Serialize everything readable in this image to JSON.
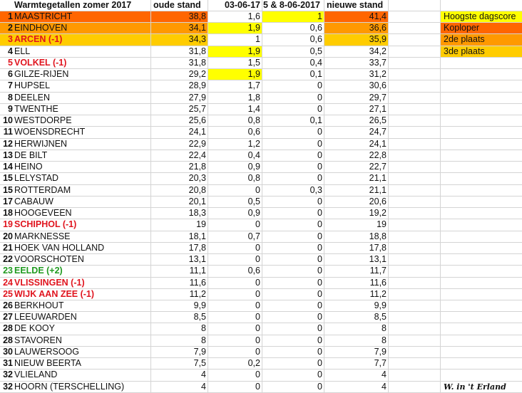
{
  "colors": {
    "first": "#FF6600",
    "second": "#FF9900",
    "third": "#FFCC00",
    "day_high": "#FFFF00",
    "down": "#e0141e",
    "up": "#1f9a1f"
  },
  "header": {
    "title": "Warmtegetallen zomer 2017",
    "col_old": "oude stand",
    "col_day1": "03-06-17",
    "col_day2": "5 & 8-06-2017",
    "col_new": "nieuwe stand"
  },
  "legend": [
    {
      "label": "Hoogste dagscore",
      "color": "#FFFF00"
    },
    {
      "label": "Koploper",
      "color": "#FF6600"
    },
    {
      "label": "2de plaats",
      "color": "#FF9900"
    },
    {
      "label": "3de plaats",
      "color": "#FFCC00"
    }
  ],
  "signature": "W. in 't Erland",
  "rows": [
    {
      "rank": "1",
      "name": "MAASTRICHT",
      "old": "38,8",
      "d1": "1,6",
      "d2": "1",
      "new": "41,4",
      "place": "first",
      "hi_d2": true
    },
    {
      "rank": "2",
      "name": "EINDHOVEN",
      "old": "34,1",
      "d1": "1,9",
      "d2": "0,6",
      "new": "36,6",
      "place": "second",
      "hi_d1": true
    },
    {
      "rank": "3",
      "name": "ARCEN (-1)",
      "old": "34,3",
      "d1": "1",
      "d2": "0,6",
      "new": "35,9",
      "place": "third",
      "move": "down"
    },
    {
      "rank": "4",
      "name": "ELL",
      "old": "31,8",
      "d1": "1,9",
      "d2": "0,5",
      "new": "34,2",
      "hi_d1": true
    },
    {
      "rank": "5",
      "name": "VOLKEL (-1)",
      "old": "31,8",
      "d1": "1,5",
      "d2": "0,4",
      "new": "33,7",
      "move": "down"
    },
    {
      "rank": "6",
      "name": "GILZE-RIJEN",
      "old": "29,2",
      "d1": "1,9",
      "d2": "0,1",
      "new": "31,2",
      "hi_d1": true
    },
    {
      "rank": "7",
      "name": "HUPSEL",
      "old": "28,9",
      "d1": "1,7",
      "d2": "0",
      "new": "30,6"
    },
    {
      "rank": "8",
      "name": "DEELEN",
      "old": "27,9",
      "d1": "1,8",
      "d2": "0",
      "new": "29,7"
    },
    {
      "rank": "9",
      "name": "TWENTHE",
      "old": "25,7",
      "d1": "1,4",
      "d2": "0",
      "new": "27,1"
    },
    {
      "rank": "10",
      "name": "WESTDORPE",
      "old": "25,6",
      "d1": "0,8",
      "d2": "0,1",
      "new": "26,5"
    },
    {
      "rank": "11",
      "name": "WOENSDRECHT",
      "old": "24,1",
      "d1": "0,6",
      "d2": "0",
      "new": "24,7"
    },
    {
      "rank": "12",
      "name": "HERWIJNEN",
      "old": "22,9",
      "d1": "1,2",
      "d2": "0",
      "new": "24,1"
    },
    {
      "rank": "13",
      "name": "DE BILT",
      "old": "22,4",
      "d1": "0,4",
      "d2": "0",
      "new": "22,8"
    },
    {
      "rank": "14",
      "name": "HEINO",
      "old": "21,8",
      "d1": "0,9",
      "d2": "0",
      "new": "22,7"
    },
    {
      "rank": "15",
      "name": "LELYSTAD",
      "old": "20,3",
      "d1": "0,8",
      "d2": "0",
      "new": "21,1"
    },
    {
      "rank": "15",
      "name": "ROTTERDAM",
      "old": "20,8",
      "d1": "0",
      "d2": "0,3",
      "new": "21,1"
    },
    {
      "rank": "17",
      "name": "CABAUW",
      "old": "20,1",
      "d1": "0,5",
      "d2": "0",
      "new": "20,6"
    },
    {
      "rank": "18",
      "name": "HOOGEVEEN",
      "old": "18,3",
      "d1": "0,9",
      "d2": "0",
      "new": "19,2"
    },
    {
      "rank": "19",
      "name": "SCHIPHOL (-1)",
      "old": "19",
      "d1": "0",
      "d2": "0",
      "new": "19",
      "move": "down"
    },
    {
      "rank": "20",
      "name": "MARKNESSE",
      "old": "18,1",
      "d1": "0,7",
      "d2": "0",
      "new": "18,8"
    },
    {
      "rank": "21",
      "name": "HOEK VAN HOLLAND",
      "old": "17,8",
      "d1": "0",
      "d2": "0",
      "new": "17,8"
    },
    {
      "rank": "22",
      "name": "VOORSCHOTEN",
      "old": "13,1",
      "d1": "0",
      "d2": "0",
      "new": "13,1"
    },
    {
      "rank": "23",
      "name": "EELDE (+2)",
      "old": "11,1",
      "d1": "0,6",
      "d2": "0",
      "new": "11,7",
      "move": "up"
    },
    {
      "rank": "24",
      "name": "VLISSINGEN (-1)",
      "old": "11,6",
      "d1": "0",
      "d2": "0",
      "new": "11,6",
      "move": "down"
    },
    {
      "rank": "25",
      "name": "WIJK AAN ZEE (-1)",
      "old": "11,2",
      "d1": "0",
      "d2": "0",
      "new": "11,2",
      "move": "down"
    },
    {
      "rank": "26",
      "name": "BERKHOUT",
      "old": "9,9",
      "d1": "0",
      "d2": "0",
      "new": "9,9"
    },
    {
      "rank": "27",
      "name": "LEEUWARDEN",
      "old": "8,5",
      "d1": "0",
      "d2": "0",
      "new": "8,5"
    },
    {
      "rank": "28",
      "name": "DE KOOY",
      "old": "8",
      "d1": "0",
      "d2": "0",
      "new": "8"
    },
    {
      "rank": "28",
      "name": "STAVOREN",
      "old": "8",
      "d1": "0",
      "d2": "0",
      "new": "8"
    },
    {
      "rank": "30",
      "name": "LAUWERSOOG",
      "old": "7,9",
      "d1": "0",
      "d2": "0",
      "new": "7,9"
    },
    {
      "rank": "31",
      "name": "NIEUW BEERTA",
      "old": "7,5",
      "d1": "0,2",
      "d2": "0",
      "new": "7,7"
    },
    {
      "rank": "32",
      "name": "VLIELAND",
      "old": "4",
      "d1": "0",
      "d2": "0",
      "new": "4"
    },
    {
      "rank": "32",
      "name": "HOORN (TERSCHELLING)",
      "old": "4",
      "d1": "0",
      "d2": "0",
      "new": "4"
    }
  ]
}
